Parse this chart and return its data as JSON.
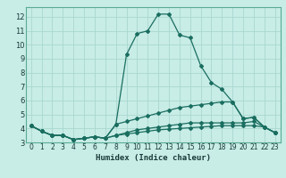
{
  "title": "",
  "xlabel": "Humidex (Indice chaleur)",
  "ylabel": "",
  "background_color": "#c8ece6",
  "grid_color": "#a8d8d0",
  "line_color": "#1a6e60",
  "xlim": [
    -0.5,
    23.5
  ],
  "ylim": [
    3.0,
    12.7
  ],
  "xticks": [
    0,
    1,
    2,
    3,
    4,
    5,
    6,
    7,
    8,
    9,
    10,
    11,
    12,
    13,
    14,
    15,
    16,
    17,
    18,
    19,
    20,
    21,
    22,
    23
  ],
  "yticks": [
    3,
    4,
    5,
    6,
    7,
    8,
    9,
    10,
    11,
    12
  ],
  "lines": [
    {
      "x": [
        0,
        1,
        2,
        3,
        4,
        5,
        6,
        7,
        8,
        9,
        10,
        11,
        12,
        13,
        14,
        15,
        16,
        17,
        18,
        19,
        20,
        21,
        22,
        23
      ],
      "y": [
        4.2,
        3.8,
        3.5,
        3.5,
        3.2,
        3.3,
        3.4,
        3.3,
        4.3,
        9.3,
        10.8,
        11.0,
        12.2,
        12.2,
        10.7,
        10.5,
        8.5,
        7.3,
        6.8,
        5.9,
        4.7,
        4.8,
        4.1,
        3.7
      ]
    },
    {
      "x": [
        0,
        1,
        2,
        3,
        4,
        5,
        6,
        7,
        8,
        9,
        10,
        11,
        12,
        13,
        14,
        15,
        16,
        17,
        18,
        19,
        20,
        21,
        22,
        23
      ],
      "y": [
        4.2,
        3.8,
        3.5,
        3.5,
        3.2,
        3.3,
        3.4,
        3.3,
        4.3,
        4.5,
        4.7,
        4.9,
        5.1,
        5.3,
        5.5,
        5.6,
        5.7,
        5.8,
        5.9,
        5.9,
        4.7,
        4.8,
        4.1,
        3.7
      ]
    },
    {
      "x": [
        0,
        1,
        2,
        3,
        4,
        5,
        6,
        7,
        8,
        9,
        10,
        11,
        12,
        13,
        14,
        15,
        16,
        17,
        18,
        19,
        20,
        21,
        22,
        23
      ],
      "y": [
        4.2,
        3.8,
        3.5,
        3.5,
        3.2,
        3.3,
        3.4,
        3.3,
        3.5,
        3.7,
        3.9,
        4.0,
        4.1,
        4.2,
        4.3,
        4.4,
        4.4,
        4.4,
        4.4,
        4.4,
        4.4,
        4.5,
        4.1,
        3.7
      ]
    },
    {
      "x": [
        0,
        1,
        2,
        3,
        4,
        5,
        6,
        7,
        8,
        9,
        10,
        11,
        12,
        13,
        14,
        15,
        16,
        17,
        18,
        19,
        20,
        21,
        22,
        23
      ],
      "y": [
        4.2,
        3.8,
        3.5,
        3.5,
        3.2,
        3.3,
        3.4,
        3.3,
        3.5,
        3.6,
        3.7,
        3.8,
        3.9,
        3.95,
        4.0,
        4.05,
        4.1,
        4.15,
        4.2,
        4.2,
        4.2,
        4.2,
        4.1,
        3.7
      ]
    }
  ]
}
